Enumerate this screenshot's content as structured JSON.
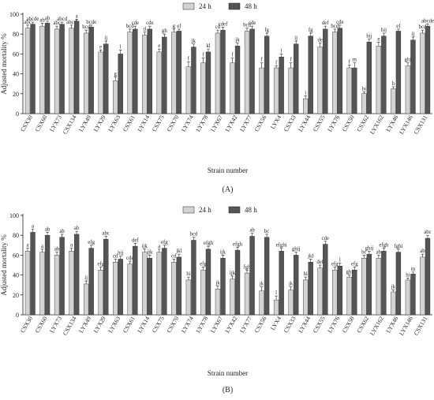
{
  "figure": {
    "panel_labels": [
      "(A)",
      "(B)"
    ]
  },
  "colors": {
    "series_24h": "#d3d3d3",
    "series_48h": "#555555",
    "axis": "#222222"
  },
  "chart_data": [
    {
      "type": "bar",
      "panel": "(A)",
      "xlabel": "Strain number",
      "ylabel": "Adjusted mortality %",
      "ylim": [
        0,
        100
      ],
      "yticks": [
        0,
        20,
        40,
        60,
        80,
        100
      ],
      "legend": "top-center",
      "categories": [
        "CSX30",
        "CSX60",
        "LYX73",
        "CSX134",
        "LYX49",
        "LYX29",
        "LYX63",
        "CSX61",
        "LYX14",
        "CSX75",
        "CSX70",
        "LYX74",
        "LYX78",
        "LYX67",
        "LYX42",
        "LYX77",
        "CSX56",
        "LYX4",
        "CSX33",
        "LYX44",
        "CSX55",
        "LYX76",
        "CSX50",
        "CSX62",
        "LYX162",
        "LYX46",
        "LYX146",
        "CSX131"
      ],
      "series": [
        {
          "name": "24 h",
          "values": [
            86,
            88,
            85,
            86,
            81,
            62,
            33,
            82,
            79,
            62,
            82,
            47,
            51,
            81,
            51,
            83,
            46,
            46,
            46,
            15,
            67,
            82,
            46,
            20,
            68,
            25,
            48,
            81
          ],
          "errors": [
            3,
            3,
            3,
            3,
            3,
            2,
            4,
            3,
            3,
            3,
            3,
            5,
            5,
            3,
            5,
            3,
            5,
            2,
            5,
            3,
            4,
            3,
            3,
            2,
            4,
            2,
            3,
            3
          ],
          "labels": [
            "abc",
            "ab",
            "abc",
            "abcd",
            "bcd",
            "e",
            "g",
            "bcd",
            "d",
            "e",
            "g",
            "f",
            "f",
            "cd",
            "f",
            "bcd",
            "f",
            "f",
            "f",
            "i",
            "de",
            "bcd",
            "f",
            "hi",
            "e",
            "h",
            "ghi",
            "bcd"
          ]
        },
        {
          "name": "48 h",
          "values": [
            90,
            91,
            90,
            93,
            87,
            70,
            60,
            85,
            85,
            77,
            83,
            67,
            62,
            84,
            68,
            85,
            78,
            57,
            70,
            78,
            85,
            86,
            46,
            72,
            78,
            83,
            74,
            88
          ],
          "errors": [
            2,
            2,
            2,
            2,
            2,
            3,
            4,
            3,
            3,
            3,
            2,
            3,
            3,
            3,
            3,
            3,
            3,
            3,
            3,
            3,
            3,
            3,
            5,
            3,
            3,
            2,
            3,
            2
          ],
          "labels": [
            "abcde",
            "ab",
            "abcd",
            "a",
            "bcde",
            "ij",
            "l",
            "cde",
            "cde",
            "gh",
            "ef",
            "jk",
            "kl",
            "cdef",
            "jk",
            "cde",
            "fg",
            "l",
            "ij",
            "fg",
            "def",
            "cde",
            "m",
            "hij",
            "hij",
            "ef",
            "ij",
            "abcde"
          ]
        }
      ]
    },
    {
      "type": "bar",
      "panel": "(B)",
      "xlabel": "Strain number",
      "ylabel": "Adjusted mortality %",
      "ylim": [
        0,
        100
      ],
      "yticks": [
        0,
        20,
        40,
        60,
        80,
        100
      ],
      "legend": "top-center",
      "categories": [
        "CSX30",
        "CSX60",
        "LYX73",
        "CSX134",
        "LYX49",
        "LYX29",
        "LYX63",
        "CSX61",
        "LYX14",
        "CSX75",
        "CSX70",
        "LYX74",
        "LYX78",
        "LYX67",
        "LYX42",
        "LYX77",
        "CSX56",
        "LYX4",
        "CSX33",
        "LYX44",
        "CSX55",
        "LYX76",
        "CSX50",
        "CSX62",
        "LYX162",
        "LYX46",
        "LYX146",
        "CSX131"
      ],
      "series": [
        {
          "name": "24 h",
          "values": [
            64,
            63,
            60,
            64,
            31,
            45,
            53,
            51,
            63,
            63,
            53,
            35,
            45,
            26,
            36,
            42,
            24,
            15,
            25,
            35,
            47,
            45,
            38,
            57,
            57,
            23,
            35,
            58
          ],
          "errors": [
            3,
            3,
            3,
            3,
            3,
            3,
            3,
            3,
            3,
            3,
            3,
            3,
            3,
            3,
            3,
            3,
            4,
            4,
            3,
            3,
            3,
            3,
            2,
            3,
            3,
            2,
            2,
            3
          ],
          "labels": [
            "a",
            "a",
            "ab",
            "a",
            "ij",
            "efg",
            "cd",
            "cde",
            "ijk",
            "a",
            "cd",
            "hi",
            "efg",
            "jk",
            "ijk",
            "fgh",
            "jk",
            "l",
            "jk",
            "hi",
            "def",
            "efg",
            "ghi",
            "bc",
            "ab",
            "jk",
            "hi",
            "ab"
          ]
        },
        {
          "name": "48 h",
          "values": [
            83,
            80,
            78,
            81,
            67,
            76,
            56,
            69,
            57,
            67,
            58,
            75,
            66,
            57,
            65,
            79,
            78,
            64,
            60,
            53,
            71,
            49,
            45,
            61,
            64,
            63,
            41,
            77
          ],
          "errors": [
            3,
            3,
            3,
            3,
            3,
            3,
            3,
            3,
            3,
            3,
            3,
            3,
            3,
            3,
            3,
            3,
            3,
            3,
            3,
            3,
            3,
            3,
            3,
            3,
            3,
            3,
            2,
            3
          ],
          "labels": [
            "a",
            "ab",
            "ab",
            "ab",
            "efg",
            "abc",
            "hij",
            "def",
            "ijk",
            "efg",
            "jkl",
            "bcd",
            "efgh",
            "ijk",
            "efgh",
            "ab",
            "bc",
            "efghi",
            "ghij",
            "jkl",
            "cde",
            "l",
            "efg",
            "ghij",
            "efgh",
            "fghi",
            "m",
            "abc"
          ]
        }
      ]
    }
  ]
}
